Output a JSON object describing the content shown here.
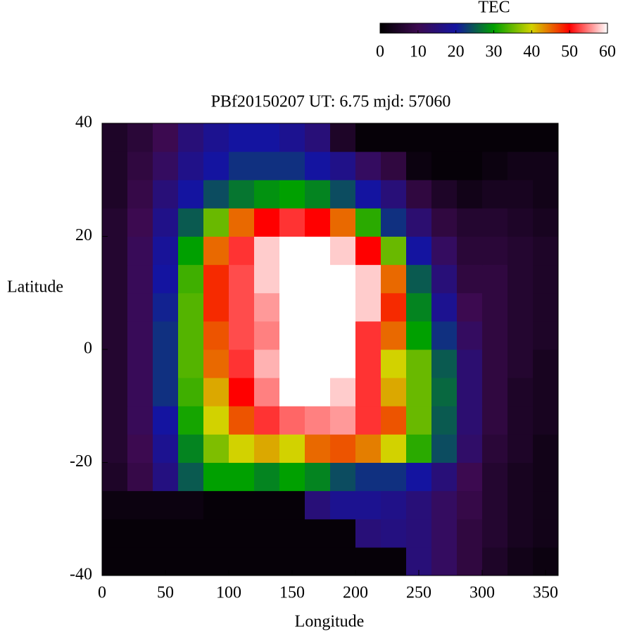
{
  "chart_data": {
    "type": "heatmap",
    "title": "PBf20150207  UT: 6.75  mjd: 57060",
    "x_label": "Longitude",
    "y_label": "Latitude",
    "x": [
      10,
      30,
      50,
      70,
      90,
      110,
      130,
      150,
      170,
      190,
      210,
      230,
      250,
      270,
      290,
      310,
      330,
      350
    ],
    "y": [
      -37.5,
      -32.5,
      -27.5,
      -22.5,
      -17.5,
      -12.5,
      -7.5,
      -2.5,
      2.5,
      7.5,
      12.5,
      17.5,
      22.5,
      27.5,
      32.5,
      37.5
    ],
    "values": [
      [
        1,
        1,
        1,
        1,
        1,
        1,
        1,
        1,
        1,
        1,
        1,
        1,
        15,
        12,
        8,
        5,
        3,
        2
      ],
      [
        1,
        1,
        1,
        1,
        1,
        1,
        1,
        1,
        1,
        1,
        15,
        16,
        15,
        12,
        8,
        6,
        4,
        3
      ],
      [
        2,
        2,
        2,
        2,
        1,
        1,
        1,
        1,
        15,
        18,
        18,
        17,
        15,
        12,
        9,
        6,
        4,
        3
      ],
      [
        5,
        9,
        16,
        25,
        30,
        30,
        28,
        30,
        28,
        24,
        22,
        22,
        20,
        15,
        10,
        6,
        4,
        3
      ],
      [
        6,
        10,
        18,
        28,
        36,
        40,
        42,
        40,
        45,
        46,
        44,
        40,
        32,
        24,
        13,
        7,
        5,
        3
      ],
      [
        6,
        11,
        20,
        31,
        40,
        46,
        52,
        54,
        55,
        56,
        52,
        46,
        35,
        25,
        14,
        8,
        5,
        4
      ],
      [
        6,
        11,
        22,
        33,
        42,
        50,
        55,
        60,
        60,
        58,
        52,
        42,
        35,
        26,
        14,
        8,
        5,
        4
      ],
      [
        6,
        11,
        22,
        34,
        45,
        52,
        57,
        60,
        60,
        60,
        52,
        40,
        35,
        25,
        14,
        8,
        6,
        4
      ],
      [
        6,
        11,
        22,
        34,
        46,
        53,
        55,
        60,
        60,
        60,
        52,
        45,
        30,
        22,
        12,
        8,
        6,
        5
      ],
      [
        6,
        11,
        21,
        34,
        48,
        53,
        56,
        60,
        60,
        60,
        58,
        48,
        28,
        18,
        10,
        8,
        6,
        5
      ],
      [
        6,
        11,
        20,
        33,
        48,
        53,
        58,
        60,
        60,
        60,
        58,
        45,
        25,
        15,
        8,
        8,
        6,
        5
      ],
      [
        6,
        11,
        19,
        30,
        45,
        52,
        58,
        60,
        60,
        58,
        50,
        35,
        20,
        12,
        7,
        7,
        6,
        5
      ],
      [
        6,
        10,
        17,
        25,
        35,
        45,
        50,
        52,
        50,
        45,
        32,
        22,
        14,
        8,
        6,
        6,
        5,
        4
      ],
      [
        5,
        9,
        15,
        20,
        24,
        27,
        29,
        30,
        28,
        24,
        20,
        15,
        8,
        5,
        3,
        4,
        4,
        3
      ],
      [
        5,
        8,
        12,
        17,
        20,
        22,
        22,
        22,
        20,
        17,
        12,
        8,
        2,
        1,
        1,
        2,
        3,
        3
      ],
      [
        5,
        7,
        10,
        15,
        18,
        20,
        20,
        18,
        15,
        5,
        1,
        1,
        1,
        1,
        1,
        1,
        1,
        1
      ]
    ],
    "xlim": [
      0,
      360
    ],
    "xticks": [
      0,
      50,
      100,
      150,
      200,
      250,
      300,
      350
    ],
    "ylim": [
      -40,
      40
    ],
    "yticks": [
      -40,
      -20,
      0,
      20,
      40
    ],
    "colorbar": {
      "title": "TEC",
      "lim": [
        0,
        60
      ],
      "ticks": [
        0,
        10,
        20,
        30,
        40,
        50,
        60
      ],
      "colormap": [
        "#000000",
        "#3c0a50",
        "#1414a0",
        "#00a000",
        "#d2d200",
        "#ff0000",
        "#ffffff"
      ]
    }
  }
}
